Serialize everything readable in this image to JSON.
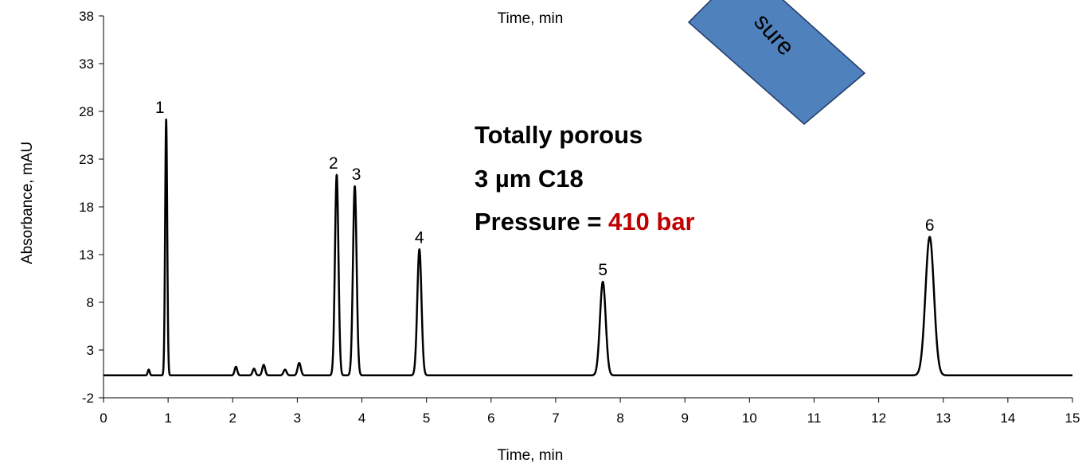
{
  "chart_data": {
    "type": "line",
    "top_axis_label": "Time, min",
    "xlabel": "Time, min",
    "ylabel": "Absorbance, mAU",
    "xlim": [
      0,
      15
    ],
    "ylim": [
      -2,
      38
    ],
    "x_ticks": [
      0,
      1,
      2,
      3,
      4,
      5,
      6,
      7,
      8,
      9,
      10,
      11,
      12,
      13,
      14,
      15
    ],
    "y_ticks": [
      -2,
      3,
      8,
      13,
      18,
      23,
      28,
      33,
      38
    ],
    "grid": false,
    "baseline": 0.35,
    "peaks": [
      {
        "label": "1",
        "time": 0.97,
        "height": 26.8
      },
      {
        "label": "2",
        "time": 3.61,
        "height": 21.0
      },
      {
        "label": "3",
        "time": 3.89,
        "height": 19.8
      },
      {
        "label": "4",
        "time": 4.89,
        "height": 13.2
      },
      {
        "label": "5",
        "time": 7.73,
        "height": 9.8
      },
      {
        "label": "6",
        "time": 12.79,
        "height": 14.5
      }
    ],
    "minor_peaks": [
      {
        "time": 0.7,
        "height": 0.6
      },
      {
        "time": 2.05,
        "height": 0.9
      },
      {
        "time": 2.33,
        "height": 0.7
      },
      {
        "time": 2.48,
        "height": 1.1
      },
      {
        "time": 2.81,
        "height": 0.6
      },
      {
        "time": 3.03,
        "height": 1.3
      }
    ],
    "line_color": "#000000"
  },
  "annotation": {
    "line1": "Totally porous",
    "line2": "3 µm C18",
    "line3_prefix": "Pressure = ",
    "line3_value": "410 bar",
    "value_color": "#c00000"
  },
  "banner": {
    "text": "sure",
    "fill": "#4f81bd"
  }
}
